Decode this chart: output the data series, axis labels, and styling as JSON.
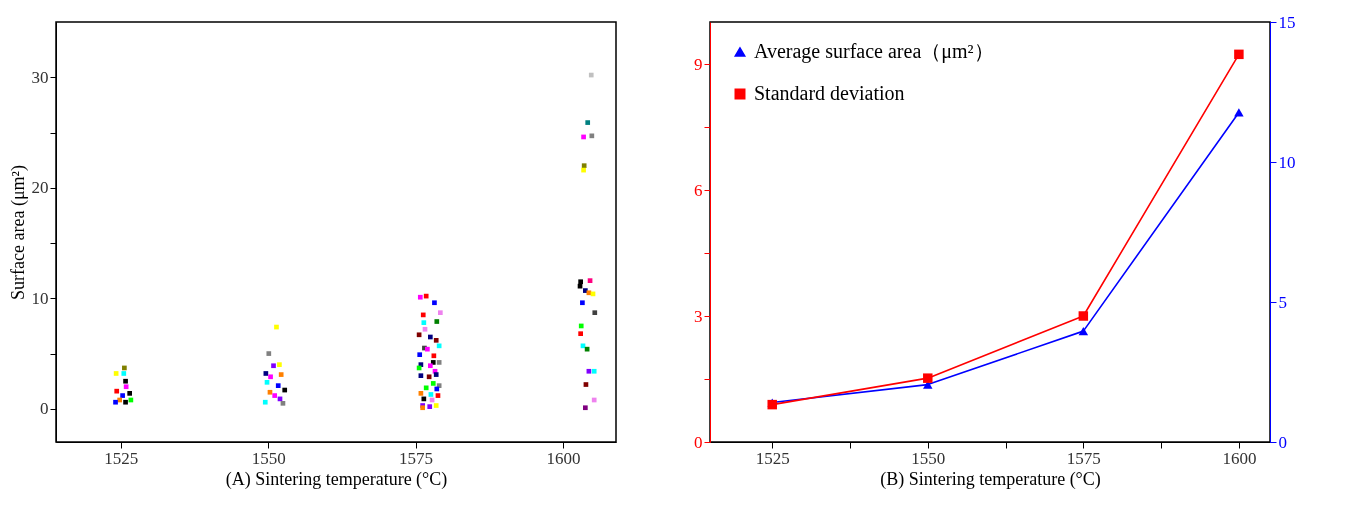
{
  "chart_data": [
    {
      "type": "scatter",
      "xlabel": "(A) Sintering temperature (°C)",
      "ylabel": "Surface area  (μm²)",
      "marker": "square",
      "xlim": [
        1514,
        1609
      ],
      "xticks": [
        1525,
        1550,
        1575,
        1600
      ],
      "ylim": [
        -3,
        35
      ],
      "yticks": [
        0,
        {
          "value": 5,
          "label": null
        },
        10,
        {
          "value": 15,
          "label": null
        },
        20,
        {
          "value": 25,
          "label": null
        },
        30
      ],
      "x": [
        1525.6,
        1524.2,
        1525.5,
        1525.8,
        1525.9,
        1524.3,
        1526.5,
        1525.3,
        1524.8,
        1526.7,
        1524.1,
        1525.8,
        1550.1,
        1550.9,
        1551.9,
        1549.6,
        1552.2,
        1550.4,
        1549.8,
        1551.7,
        1552.8,
        1550.3,
        1551.1,
        1552.0,
        1549.5,
        1552.5,
        1551.4,
        1575.8,
        1576.8,
        1578.2,
        1576.3,
        1579.2,
        1576.4,
        1578.6,
        1576.6,
        1575.6,
        1577.5,
        1578.5,
        1579.0,
        1576.5,
        1577.0,
        1575.7,
        1578.1,
        1578.0,
        1579.0,
        1575.9,
        1575.6,
        1577.5,
        1578.3,
        1575.9,
        1577.3,
        1578.5,
        1578.0,
        1576.8,
        1579.0,
        1578.6,
        1575.9,
        1577.6,
        1578.8,
        1576.4,
        1577.8,
        1576.2,
        1578.5,
        1577.4,
        1576.2,
        1604.8,
        1604.2,
        1603.5,
        1604.9,
        1603.6,
        1603.5,
        1604.6,
        1603.0,
        1602.9,
        1603.8,
        1604.4,
        1605.1,
        1603.3,
        1605.4,
        1603.1,
        1603.0,
        1603.4,
        1604.1,
        1604.4,
        1605.3,
        1603.9,
        1605.3,
        1603.8
      ],
      "values": [
        3.7,
        3.2,
        3.2,
        2.5,
        2.0,
        1.6,
        1.4,
        1.2,
        0.8,
        0.8,
        0.6,
        0.6,
        5.0,
        3.9,
        4.0,
        3.2,
        3.1,
        2.9,
        2.4,
        2.1,
        1.7,
        1.5,
        1.2,
        0.9,
        0.6,
        0.5,
        7.4,
        10.1,
        10.2,
        9.6,
        8.5,
        8.7,
        7.8,
        7.9,
        7.2,
        6.7,
        6.5,
        6.2,
        5.7,
        5.5,
        5.4,
        4.9,
        4.8,
        4.2,
        4.2,
        4.0,
        3.7,
        3.9,
        3.4,
        3.0,
        2.9,
        3.1,
        2.3,
        1.9,
        2.1,
        1.8,
        1.4,
        1.3,
        1.2,
        0.9,
        0.8,
        0.3,
        0.3,
        0.2,
        0.1,
        30.2,
        25.9,
        24.6,
        24.7,
        22.0,
        21.6,
        11.6,
        11.5,
        11.1,
        10.7,
        10.5,
        10.4,
        9.6,
        8.7,
        7.5,
        6.8,
        5.7,
        5.4,
        3.4,
        3.4,
        2.2,
        0.8,
        0.1
      ],
      "colors": [
        "#808000",
        "#ffff00",
        "#00ffff",
        "#000000",
        "#ff00ff",
        "#ff0000",
        "#000000",
        "#0000ff",
        "#ff8000",
        "#00ff00",
        "#0000ff",
        "#000000",
        "#808080",
        "#8000ff",
        "#ffff00",
        "#000080",
        "#ff8000",
        "#ff00ff",
        "#00ffff",
        "#0000ff",
        "#000000",
        "#ff8000",
        "#ff00ff",
        "#8000ff",
        "#00ffff",
        "#808080",
        "#ffff00",
        "#ff00ff",
        "#ff0000",
        "#0000ff",
        "#ff0000",
        "#ee82ee",
        "#00ffff",
        "#008000",
        "#ee82ee",
        "#800000",
        "#000080",
        "#800000",
        "#00ffff",
        "#404040",
        "#ff00ff",
        "#0000ff",
        "#ff0000",
        "#000000",
        "#808080",
        "#000080",
        "#00ff00",
        "#ff00ff",
        "#ff00ff",
        "#000080",
        "#800000",
        "#000080",
        "#00ff00",
        "#00ff00",
        "#808080",
        "#0000ff",
        "#ff8000",
        "#00ffff",
        "#ff0000",
        "#000000",
        "#ee82ee",
        "#8000ff",
        "#ffff00",
        "#8000ff",
        "#ff8000",
        "#c0c0c0",
        "#008080",
        "#ff00ff",
        "#808080",
        "#808000",
        "#ffff00",
        "#ff0080",
        "#000000",
        "#000000",
        "#000080",
        "#ff8000",
        "#ffff00",
        "#0000ff",
        "#404040",
        "#00ff00",
        "#ff0000",
        "#00ffff",
        "#008000",
        "#8000ff",
        "#00ffff",
        "#800000",
        "#ee82ee",
        "#800080"
      ]
    },
    {
      "type": "line",
      "xlabel": "(B) Sintering temperature (°C)",
      "legend": "top left",
      "xlim": [
        1515,
        1605
      ],
      "xticks": [
        1525,
        {
          "value": 1537.5,
          "label": null
        },
        1550,
        {
          "value": 1562.5,
          "label": null
        },
        1575,
        {
          "value": 1587.5,
          "label": null
        },
        1600
      ],
      "ylim": [
        0,
        10
      ],
      "yticks": [
        0,
        {
          "value": 1.5,
          "label": null
        },
        3,
        {
          "value": 4.5,
          "label": null
        },
        6,
        {
          "value": 7.5,
          "label": null
        },
        9
      ],
      "y2lim": [
        0,
        15
      ],
      "y2ticks": [
        0,
        5,
        10,
        15
      ],
      "x": [
        1525,
        1550,
        1575,
        1600
      ],
      "series": [
        {
          "name": "Average surface area（μm²）",
          "color": "#0000ff",
          "axis": "y2",
          "marker": "triangle",
          "values": [
            1.41,
            2.05,
            3.96,
            11.77
          ]
        },
        {
          "name": "Standard deviation",
          "color": "#ff0000",
          "marker": "square",
          "values": [
            0.89,
            1.52,
            3.0,
            9.23
          ]
        }
      ]
    }
  ]
}
